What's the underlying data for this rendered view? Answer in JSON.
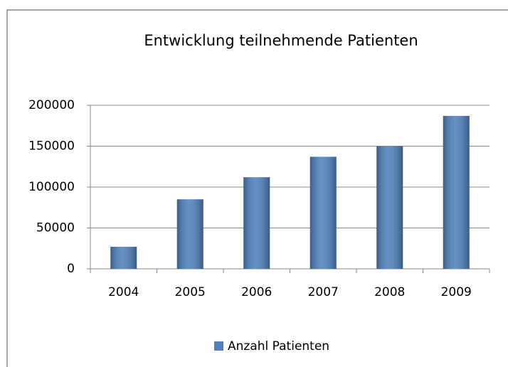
{
  "chart_data": {
    "type": "bar",
    "title": "Entwicklung teilnehmende Patienten",
    "categories": [
      "2004",
      "2005",
      "2006",
      "2007",
      "2008",
      "2009"
    ],
    "series": [
      {
        "name": "Anzahl Patienten",
        "color": "#4f81bd",
        "values": [
          27000,
          85000,
          112000,
          137000,
          150000,
          187000
        ]
      }
    ],
    "ylim": [
      0,
      200000
    ],
    "yticks": [
      0,
      50000,
      100000,
      150000,
      200000
    ],
    "grid": true,
    "legend": "bottom"
  }
}
